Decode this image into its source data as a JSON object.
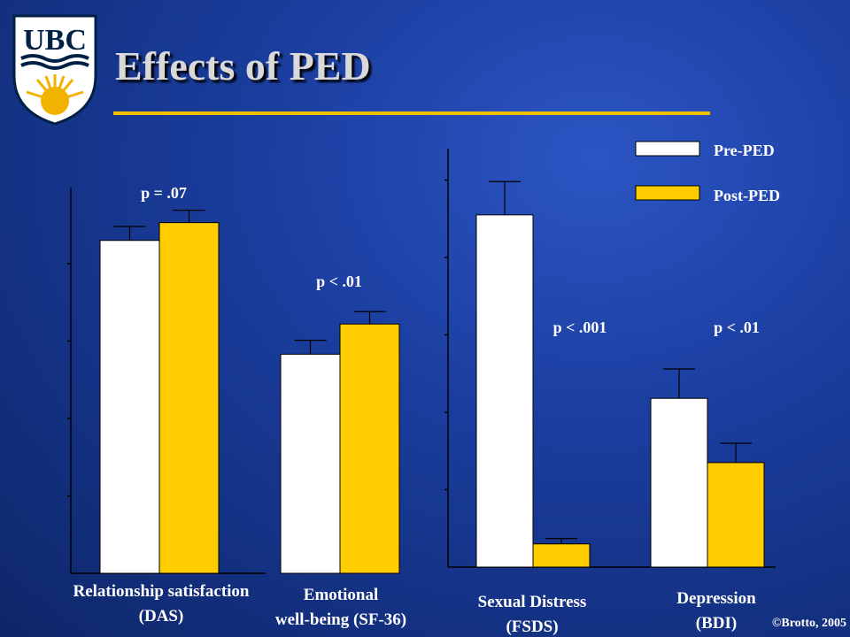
{
  "slide": {
    "title": "Effects of PED",
    "logo_text": "UBC",
    "credit": "©Brotto, 2005"
  },
  "legend": {
    "pre": "Pre-PED",
    "post": "Post-PED"
  },
  "colors": {
    "pre": "#ffffff",
    "post": "#ffcc00",
    "background": "#1a3d9e",
    "title_rule": "#f0c000"
  },
  "chart_data": [
    {
      "type": "bar",
      "categories": [
        [
          "Relationship satisfaction",
          "(DAS)"
        ],
        [
          "Emotional",
          "well-being (SF-36)"
        ]
      ],
      "series": [
        {
          "name": "Pre-PED",
          "values": [
            4.3,
            2.83
          ],
          "error": [
            0.18,
            0.18
          ]
        },
        {
          "name": "Post-PED",
          "values": [
            4.53,
            3.22
          ],
          "error": [
            0.16,
            0.16
          ]
        }
      ],
      "annotations": [
        "p = .07",
        "p < .01"
      ],
      "ylim": [
        0,
        5
      ]
    },
    {
      "type": "bar",
      "categories": [
        [
          "Sexual Distress",
          "(FSDS)"
        ],
        [
          "Depression",
          "(BDI)"
        ]
      ],
      "series": [
        {
          "name": "Pre-PED",
          "values": [
            4.55,
            2.18
          ],
          "error": [
            0.43,
            0.38
          ]
        },
        {
          "name": "Post-PED",
          "values": [
            0.3,
            1.35
          ],
          "error": [
            0.07,
            0.25
          ]
        }
      ],
      "annotations": [
        "p < .001",
        "p < .01"
      ],
      "ylim": [
        0,
        5
      ]
    }
  ]
}
